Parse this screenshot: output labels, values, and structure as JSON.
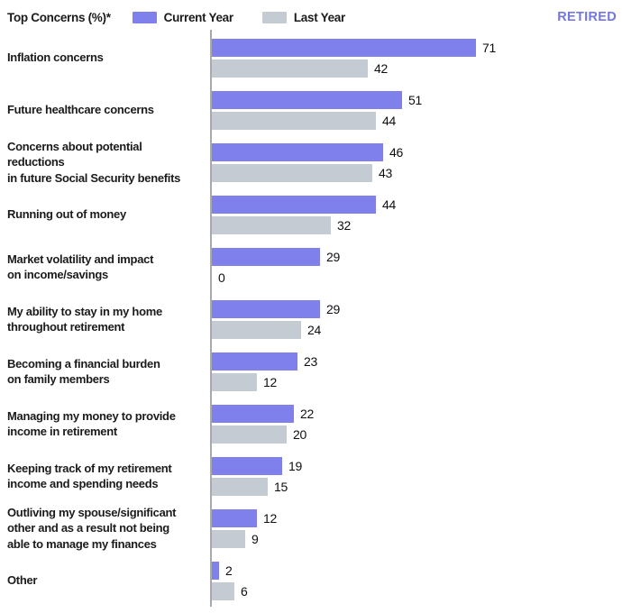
{
  "header": {
    "title": "Top Concerns (%)*",
    "legend": [
      {
        "label": "Current Year",
        "color": "#8080ec"
      },
      {
        "label": "Last Year",
        "color": "#c5cbd2"
      }
    ],
    "tag": "RETIRED"
  },
  "colors": {
    "current_year": "#8080ec",
    "last_year": "#c5cbd2",
    "accent": "#7476e4",
    "axis": "#a6a9ad",
    "text": "#1b1b1b"
  },
  "chart_data": {
    "type": "bar",
    "orientation": "horizontal",
    "title": "Top Concerns (%)*",
    "xlabel": "",
    "ylabel": "",
    "xlim": [
      0,
      110
    ],
    "grid": false,
    "legend_position": "top",
    "value_labels": true,
    "categories": [
      "Inflation concerns",
      "Future healthcare concerns",
      "Concerns about potential reductions\nin future Social Security benefits",
      "Running out of money",
      "Market volatility and impact\non income/savings",
      "My ability to stay in my home\nthroughout retirement",
      "Becoming a financial burden\non family members",
      "Managing my money to provide\nincome in retirement",
      "Keeping track of my retirement\nincome and spending needs",
      "Outliving my spouse/significant\nother and as a result not being\nable to manage my finances",
      "Other"
    ],
    "series": [
      {
        "name": "Current Year",
        "color": "#8080ec",
        "values": [
          71,
          51,
          46,
          44,
          29,
          29,
          23,
          22,
          19,
          12,
          2
        ]
      },
      {
        "name": "Last Year",
        "color": "#c5cbd2",
        "values": [
          42,
          44,
          43,
          32,
          0,
          24,
          12,
          20,
          15,
          9,
          6
        ]
      }
    ]
  }
}
